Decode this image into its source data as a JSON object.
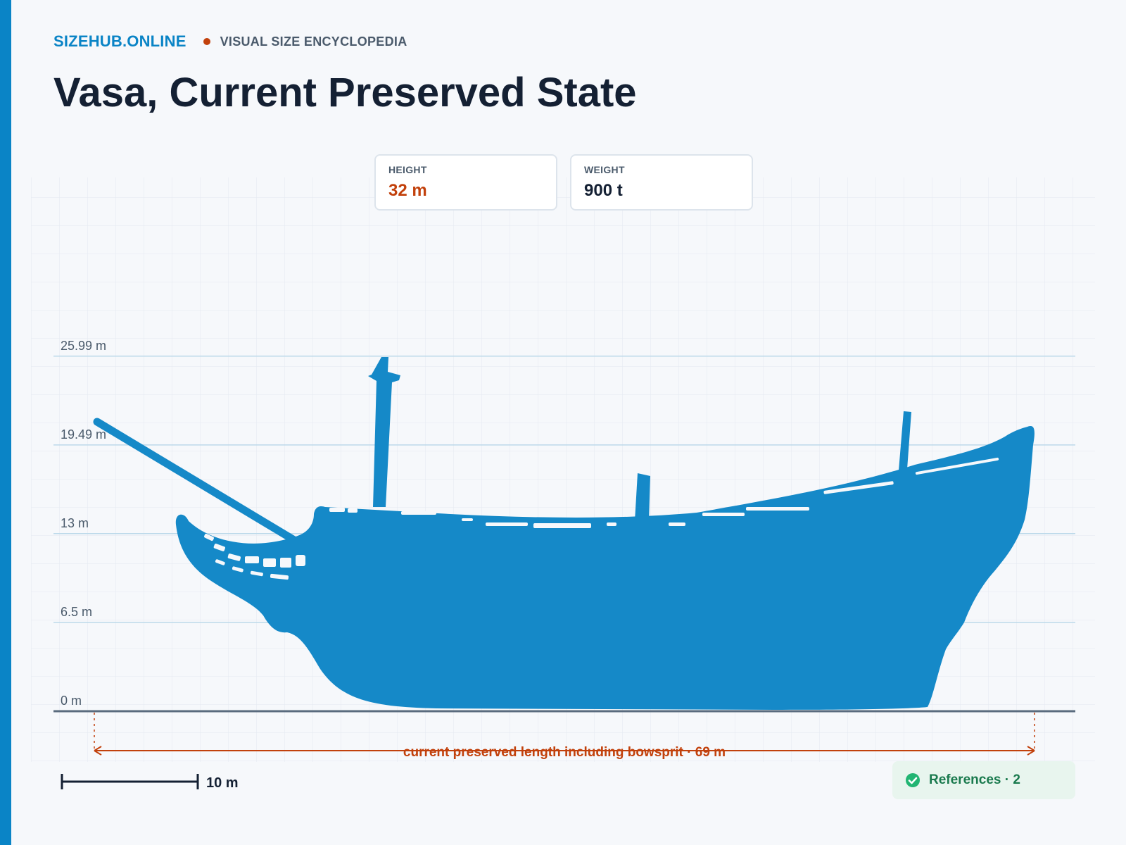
{
  "site": {
    "brand": "SIZEHUB.ONLINE",
    "tagline": "VISUAL SIZE ENCYCLOPEDIA"
  },
  "page": {
    "title": "Vasa, Current Preserved State"
  },
  "stats": [
    {
      "label": "HEIGHT",
      "value": "32 m"
    },
    {
      "label": "WEIGHT",
      "value": "900 t"
    }
  ],
  "diagram": {
    "levels": [
      {
        "label": "25.99 m",
        "value": 25.99
      },
      {
        "label": "19.49 m",
        "value": 19.49
      },
      {
        "label": "13 m",
        "value": 13
      },
      {
        "label": "6.5 m",
        "value": 6.5
      },
      {
        "label": "0 m",
        "value": 0
      }
    ],
    "dimension_label": "current preserved length including bowsprit · 69 m",
    "scale_bar_label": "10 m",
    "colors": {
      "silhouette": "#1589c8",
      "dimension": "#c2410c",
      "accent": "#0a84c6",
      "ground": "#5a6b7e"
    }
  },
  "references": {
    "label": "References · 2",
    "icon": "check-circle-icon"
  }
}
